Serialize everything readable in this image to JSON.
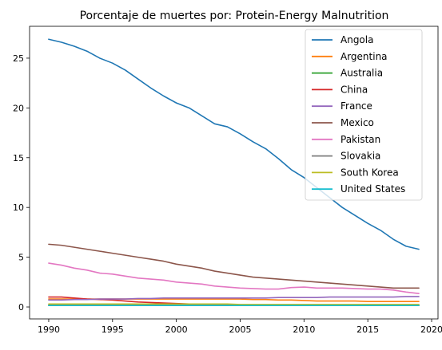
{
  "chart_data": {
    "type": "line",
    "title": "Porcentaje de muertes por: Protein-Energy Malnutrition",
    "xlabel": "",
    "ylabel": "",
    "xlim": [
      1988.5,
      2020.5
    ],
    "ylim": [
      -1.2,
      28.2
    ],
    "x_ticks": [
      1990,
      1995,
      2000,
      2005,
      2010,
      2015,
      2020
    ],
    "y_ticks": [
      0,
      5,
      10,
      15,
      20,
      25
    ],
    "grid": false,
    "legend_position": "top-right",
    "x": [
      1990,
      1991,
      1992,
      1993,
      1994,
      1995,
      1996,
      1997,
      1998,
      1999,
      2000,
      2001,
      2002,
      2003,
      2004,
      2005,
      2006,
      2007,
      2008,
      2009,
      2010,
      2011,
      2012,
      2013,
      2014,
      2015,
      2016,
      2017,
      2018,
      2019
    ],
    "series": [
      {
        "name": "Angola",
        "color": "#1f77b4",
        "values": [
          26.9,
          26.6,
          26.2,
          25.7,
          25.0,
          24.5,
          23.8,
          22.9,
          22.0,
          21.2,
          20.5,
          20.0,
          19.2,
          18.4,
          18.1,
          17.4,
          16.6,
          15.9,
          14.9,
          13.8,
          13.0,
          12.0,
          11.0,
          10.0,
          9.2,
          8.4,
          7.7,
          6.8,
          6.1,
          5.8
        ]
      },
      {
        "name": "Argentina",
        "color": "#ff7f0e",
        "values": [
          0.8,
          0.8,
          0.8,
          0.8,
          0.8,
          0.8,
          0.8,
          0.8,
          0.8,
          0.8,
          0.8,
          0.8,
          0.8,
          0.8,
          0.8,
          0.8,
          0.75,
          0.75,
          0.7,
          0.7,
          0.65,
          0.6,
          0.6,
          0.6,
          0.6,
          0.55,
          0.55,
          0.55,
          0.55,
          0.55
        ]
      },
      {
        "name": "Australia",
        "color": "#2ca02c",
        "values": [
          0.15,
          0.15,
          0.15,
          0.15,
          0.15,
          0.15,
          0.15,
          0.15,
          0.15,
          0.15,
          0.15,
          0.15,
          0.15,
          0.15,
          0.15,
          0.15,
          0.15,
          0.15,
          0.15,
          0.15,
          0.15,
          0.15,
          0.15,
          0.15,
          0.15,
          0.15,
          0.15,
          0.15,
          0.15,
          0.15
        ]
      },
      {
        "name": "China",
        "color": "#d62728",
        "values": [
          1.0,
          1.0,
          0.9,
          0.8,
          0.75,
          0.7,
          0.6,
          0.5,
          0.45,
          0.4,
          0.35,
          0.3,
          0.3,
          0.25,
          0.25,
          0.2,
          0.2,
          0.2,
          0.2,
          0.2,
          0.2,
          0.2,
          0.2,
          0.2,
          0.2,
          0.2,
          0.2,
          0.2,
          0.2,
          0.2
        ]
      },
      {
        "name": "France",
        "color": "#9467bd",
        "values": [
          0.7,
          0.7,
          0.75,
          0.75,
          0.8,
          0.8,
          0.8,
          0.85,
          0.85,
          0.9,
          0.9,
          0.9,
          0.9,
          0.9,
          0.9,
          0.9,
          0.9,
          0.9,
          0.95,
          0.95,
          0.95,
          0.95,
          1.0,
          1.0,
          1.0,
          1.0,
          1.0,
          1.0,
          1.05,
          1.05
        ]
      },
      {
        "name": "Mexico",
        "color": "#8c564b",
        "values": [
          6.3,
          6.2,
          6.0,
          5.8,
          5.6,
          5.4,
          5.2,
          5.0,
          4.8,
          4.6,
          4.3,
          4.1,
          3.9,
          3.6,
          3.4,
          3.2,
          3.0,
          2.9,
          2.8,
          2.7,
          2.6,
          2.5,
          2.4,
          2.3,
          2.2,
          2.1,
          2.0,
          1.9,
          1.9,
          1.9
        ]
      },
      {
        "name": "Pakistan",
        "color": "#e377c2",
        "values": [
          4.4,
          4.2,
          3.9,
          3.7,
          3.4,
          3.3,
          3.1,
          2.9,
          2.8,
          2.7,
          2.5,
          2.4,
          2.3,
          2.1,
          2.0,
          1.9,
          1.85,
          1.8,
          1.8,
          1.95,
          2.0,
          1.9,
          1.9,
          1.9,
          1.85,
          1.8,
          1.8,
          1.7,
          1.5,
          1.35
        ]
      },
      {
        "name": "Slovakia",
        "color": "#7f7f7f",
        "values": [
          0.2,
          0.2,
          0.2,
          0.2,
          0.2,
          0.2,
          0.2,
          0.2,
          0.2,
          0.2,
          0.2,
          0.2,
          0.2,
          0.2,
          0.2,
          0.2,
          0.2,
          0.2,
          0.2,
          0.2,
          0.2,
          0.2,
          0.2,
          0.2,
          0.2,
          0.2,
          0.2,
          0.2,
          0.2,
          0.2
        ]
      },
      {
        "name": "South Korea",
        "color": "#bcbd22",
        "values": [
          0.3,
          0.3,
          0.3,
          0.3,
          0.3,
          0.3,
          0.3,
          0.3,
          0.3,
          0.3,
          0.3,
          0.3,
          0.3,
          0.3,
          0.3,
          0.25,
          0.25,
          0.25,
          0.25,
          0.25,
          0.25,
          0.25,
          0.25,
          0.25,
          0.25,
          0.25,
          0.25,
          0.25,
          0.25,
          0.25
        ]
      },
      {
        "name": "United States",
        "color": "#17becf",
        "values": [
          0.15,
          0.15,
          0.15,
          0.15,
          0.15,
          0.15,
          0.15,
          0.15,
          0.15,
          0.15,
          0.15,
          0.15,
          0.15,
          0.15,
          0.15,
          0.15,
          0.15,
          0.15,
          0.15,
          0.15,
          0.15,
          0.15,
          0.15,
          0.15,
          0.15,
          0.15,
          0.15,
          0.15,
          0.15,
          0.15
        ]
      }
    ]
  }
}
